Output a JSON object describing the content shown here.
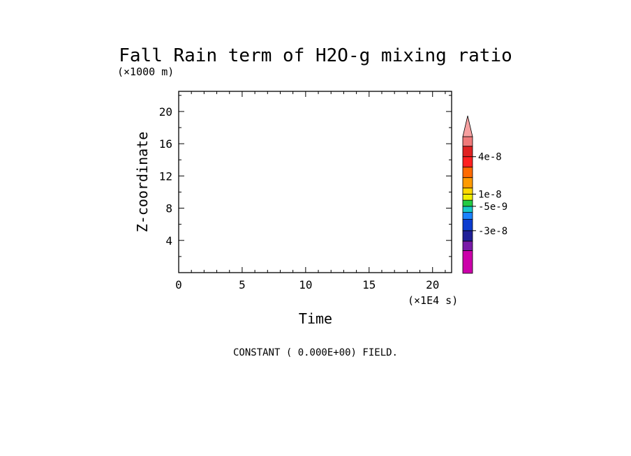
{
  "chart_data": {
    "type": "contour",
    "title": "Fall Rain term of H2O-g mixing ratio",
    "xlabel": "Time",
    "ylabel": "Z-coordinate",
    "x_unit_label": "(×1E4 s)",
    "y_unit_label": "(×1000 m)",
    "xlim": [
      0,
      21.5
    ],
    "ylim": [
      0,
      22.5
    ],
    "x_major_ticks": [
      0,
      5,
      10,
      15,
      20
    ],
    "x_tick_labels": [
      "0",
      "5",
      "10",
      "15",
      "20"
    ],
    "x_minor_step": 1,
    "y_major_ticks": [
      4,
      8,
      12,
      16,
      20
    ],
    "y_tick_labels": [
      "4",
      "8",
      "12",
      "16",
      "20"
    ],
    "y_minor_step": 2,
    "field_note": "CONSTANT ( 0.000E+00) FIELD.",
    "colorbar": {
      "colors": [
        "#cc00aa",
        "#7a1aa8",
        "#202098",
        "#0c3cd0",
        "#1a82ff",
        "#18c8c8",
        "#22cc44",
        "#f0f000",
        "#ffd800",
        "#ff9a00",
        "#ff6a00",
        "#ff2020",
        "#e02222",
        "#f07a7a"
      ],
      "extend_top_color": "#f6a0a0",
      "labels": [
        {
          "text": "4e-8",
          "at_boundary": 12
        },
        {
          "text": "1e-8",
          "at_boundary": 8
        },
        {
          "text": "-5e-9",
          "at_boundary": 6
        },
        {
          "text": "-3e-8",
          "at_boundary": 3
        }
      ]
    }
  }
}
